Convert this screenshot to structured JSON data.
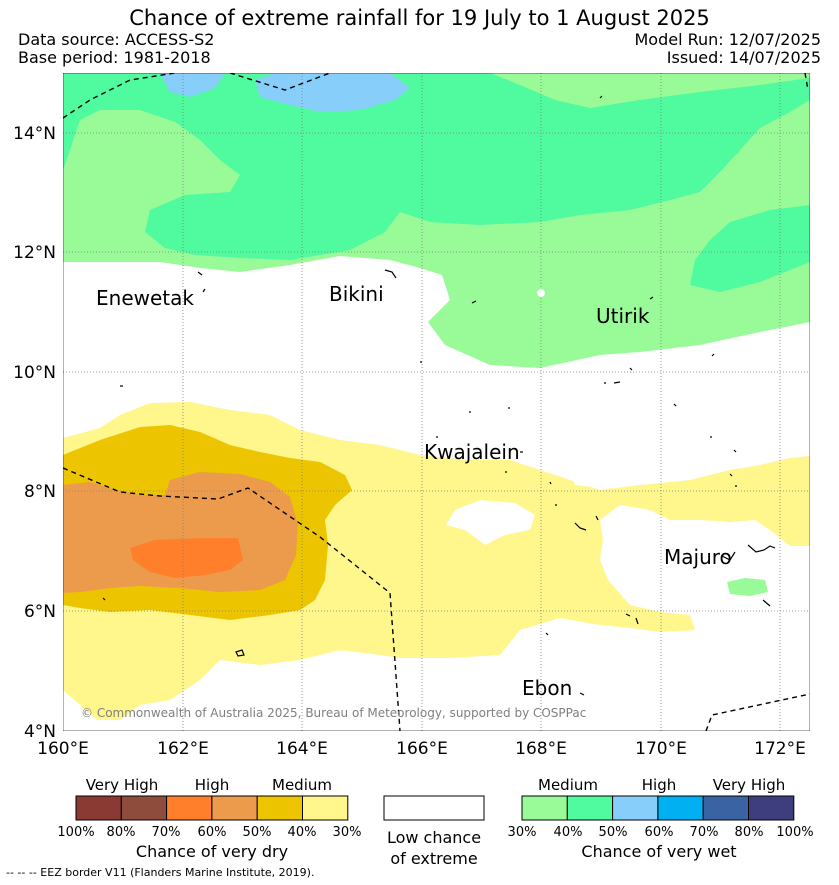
{
  "title": "Chance of extreme rainfall for 19 July to 1 August 2025",
  "data_source": "Data source: ACCESS-S2",
  "base_period": "Base period: 1981-2018",
  "model_run": "Model Run: 12/07/2025",
  "issued": "Issued: 14/07/2025",
  "copyright": "© Commonwealth of Australia 2025, Bureau of Meteorology, supported by COSPPac",
  "lat_labels": [
    "14°N",
    "12°N",
    "10°N",
    "8°N",
    "6°N",
    "4°N"
  ],
  "lon_labels": [
    "160°E",
    "162°E",
    "164°E",
    "166°E",
    "168°E",
    "170°E",
    "172°E"
  ],
  "places": {
    "enewetak": "Enewetak",
    "bikini": "Bikini",
    "utirik": "Utirik",
    "kwajalein": "Kwajalein",
    "majuro": "Majuro",
    "ebon": "Ebon"
  },
  "legend": {
    "dry": {
      "headers": [
        "Very High",
        "High",
        "Medium"
      ],
      "percents": [
        "100%",
        "80%",
        "70%",
        "60%",
        "50%",
        "40%",
        "30%"
      ],
      "colors": [
        "#8b3a33",
        "#8e4d3c",
        "#ff7f2a",
        "#ec9a4c",
        "#ecc400",
        "#fff68c"
      ],
      "title": "Chance of very dry"
    },
    "low": {
      "line1": "Low chance",
      "line2": "of extreme"
    },
    "wet": {
      "headers": [
        "Medium",
        "High",
        "Very High"
      ],
      "percents": [
        "30%",
        "40%",
        "50%",
        "60%",
        "70%",
        "80%",
        "100%"
      ],
      "colors": [
        "#98fb98",
        "#50fa9f",
        "#87cefa",
        "#00b0f0",
        "#3a63a3",
        "#3e3e7f"
      ],
      "title": "Chance of very wet"
    }
  },
  "footer": "--  --  -- EEZ border V11 (Flanders Marine Institute, 2019)."
}
